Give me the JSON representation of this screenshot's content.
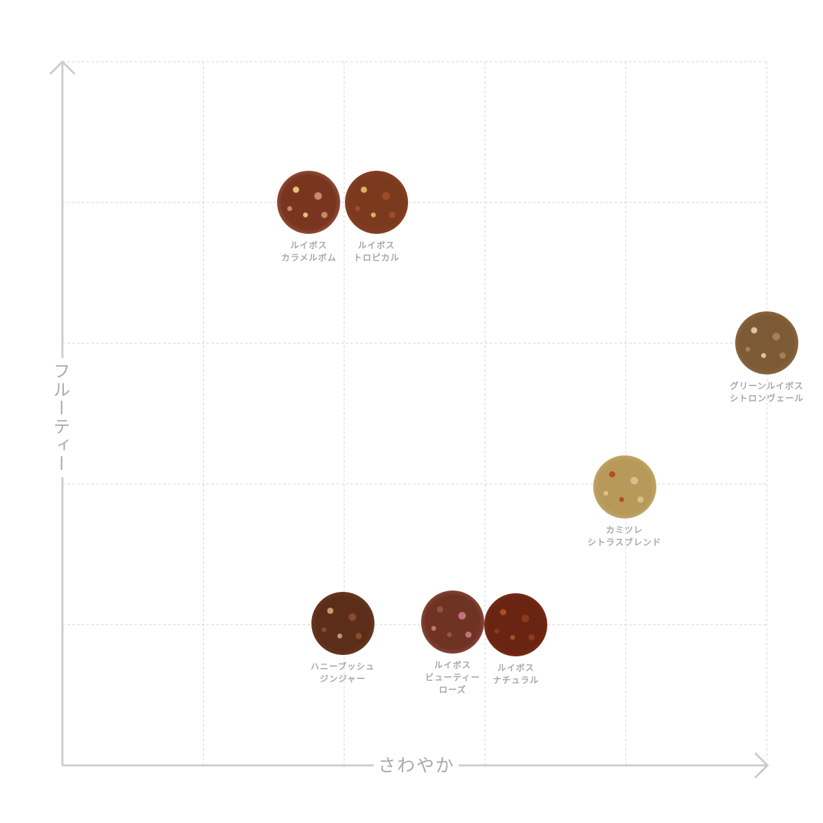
{
  "axes": {
    "x_label": "さわやか",
    "y_label": "フルーティー",
    "x_range": [
      0,
      5
    ],
    "y_range": [
      0,
      5
    ],
    "grid": true,
    "color": "#cccccc"
  },
  "chart_data": {
    "type": "scatter",
    "xlabel": "さわやか",
    "ylabel": "フルーティー",
    "xlim": [
      0,
      5
    ],
    "ylim": [
      0,
      5
    ],
    "grid": true,
    "points": [
      {
        "name_lines": [
          "ルイボス",
          "カラメルボム"
        ],
        "x": 1.75,
        "y": 4.0,
        "colors": [
          "#7a3520",
          "#c58a6a",
          "#e3c27a"
        ]
      },
      {
        "name_lines": [
          "ルイボス",
          "トロピカル"
        ],
        "x": 2.23,
        "y": 4.0,
        "colors": [
          "#7b3a1e",
          "#a04c2a",
          "#e0b060"
        ]
      },
      {
        "name_lines": [
          "グリーンルイボス",
          "シトロンヴェール"
        ],
        "x": 5.0,
        "y": 3.0,
        "colors": [
          "#7d5a36",
          "#a98055",
          "#d8c8a0"
        ]
      },
      {
        "name_lines": [
          "カミツレ",
          "シトラスブレンド"
        ],
        "x": 3.99,
        "y": 1.98,
        "colors": [
          "#b79a5a",
          "#d7c08a",
          "#b84a2a"
        ]
      },
      {
        "name_lines": [
          "ハニーブッシュ",
          "ジンジャー"
        ],
        "x": 1.99,
        "y": 1.01,
        "colors": [
          "#5c2e1a",
          "#8a4a2c",
          "#c99a70"
        ]
      },
      {
        "name_lines": [
          "ルイボス",
          "ビューティー",
          "ローズ"
        ],
        "x": 2.77,
        "y": 1.02,
        "colors": [
          "#6e3322",
          "#c4727a",
          "#8a5a3a"
        ]
      },
      {
        "name_lines": [
          "ルイボス",
          "ナチュラル"
        ],
        "x": 3.22,
        "y": 1.0,
        "colors": [
          "#6a2412",
          "#8c3a1c",
          "#a8502a"
        ]
      }
    ]
  }
}
